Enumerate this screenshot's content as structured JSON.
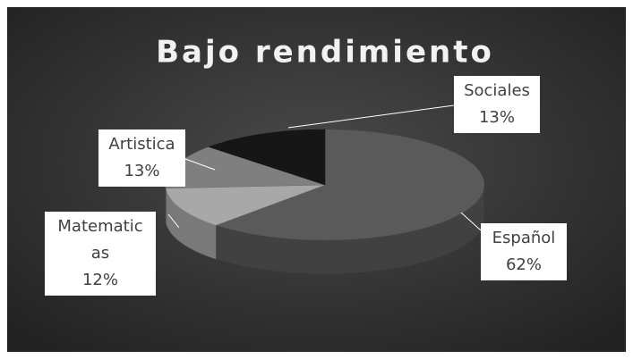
{
  "chart_data": {
    "type": "pie",
    "title": "Bajo rendimiento",
    "categories": [
      "Español",
      "Matematicas",
      "Artistica",
      "Sociales"
    ],
    "values": [
      62,
      12,
      13,
      13
    ],
    "value_labels": [
      "62%",
      "12%",
      "13%",
      "13%"
    ],
    "colors": [
      "#5a5a5a",
      "#a8a8a8",
      "#7f7f7f",
      "#161616"
    ]
  }
}
